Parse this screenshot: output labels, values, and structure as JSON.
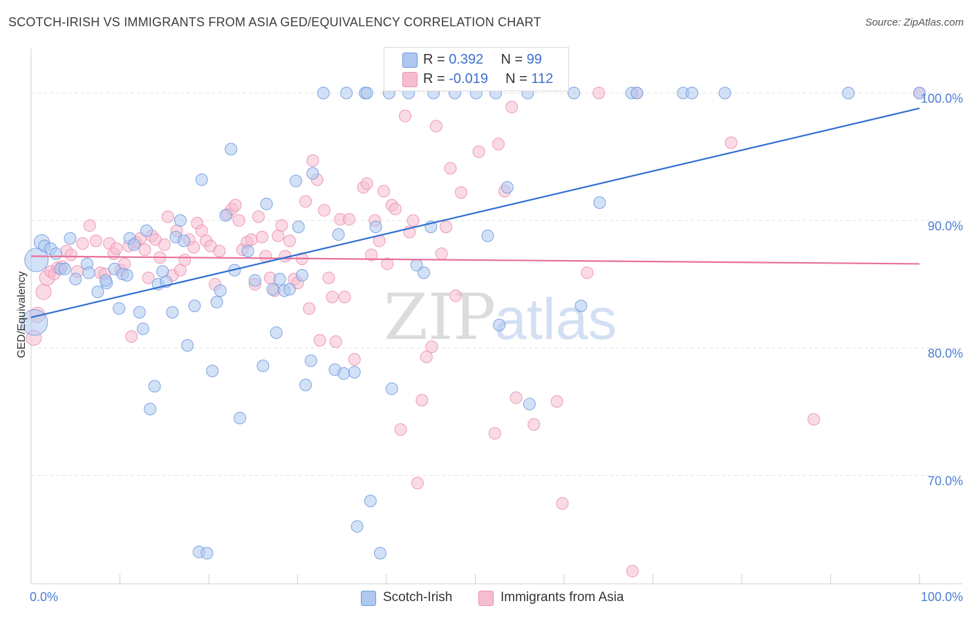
{
  "title": "SCOTCH-IRISH VS IMMIGRANTS FROM ASIA GED/EQUIVALENCY CORRELATION CHART",
  "source": "Source: ZipAtlas.com",
  "watermark": {
    "zip": "ZIP",
    "atlas": "atlas"
  },
  "legend": {
    "rows": [
      {
        "r_label": "R = ",
        "r_value": "0.392",
        "n_label": "N = ",
        "n_value": "99"
      },
      {
        "r_label": "R = ",
        "r_value": "-0.019",
        "n_label": "N = ",
        "n_value": "112"
      }
    ]
  },
  "colors": {
    "blue_fill": "#aec8f0",
    "blue_stroke": "#6f9be0",
    "blue_line": "#2f6fd0",
    "pink_fill": "#f6bdd0",
    "pink_stroke": "#ec8fb0",
    "pink_line": "#e8709a",
    "tick_text": "#4a7fd4",
    "grid": "#e2e2e2"
  },
  "chart_data": {
    "type": "scatter",
    "title": "SCOTCH-IRISH VS IMMIGRANTS FROM ASIA GED/EQUIVALENCY CORRELATION CHART",
    "xlabel": "",
    "ylabel": "GED/Equivalency",
    "xlim": [
      0,
      100
    ],
    "ylim": [
      61.5,
      103.5
    ],
    "x_tick_labels": [
      "0.0%",
      "100.0%"
    ],
    "y_ticks": [
      70,
      80,
      90,
      100
    ],
    "y_tick_labels": [
      "70.0%",
      "80.0%",
      "90.0%",
      "100.0%"
    ],
    "grid": true,
    "legend_position": "bottom",
    "series": [
      {
        "name": "Scotch-Irish",
        "r": 0.392,
        "n": 99,
        "trend": [
          [
            0,
            82.4
          ],
          [
            100,
            98.8
          ]
        ],
        "points": [
          [
            0.4,
            82.0,
            2.2
          ],
          [
            0.6,
            86.9,
            2.0
          ],
          [
            1.2,
            88.3,
            1.3
          ],
          [
            1.5,
            88.0,
            1.0
          ],
          [
            2.2,
            87.8,
            1.0
          ],
          [
            2.8,
            87.4,
            1.0
          ],
          [
            3.3,
            86.2,
            1.0
          ],
          [
            3.8,
            86.2,
            1.0
          ],
          [
            4.4,
            88.6,
            1.0
          ],
          [
            5.0,
            85.4,
            1.0
          ],
          [
            6.3,
            86.6,
            1.0
          ],
          [
            6.5,
            85.9,
            1.0
          ],
          [
            7.5,
            84.4,
            1.0
          ],
          [
            8.5,
            85.1,
            1.0
          ],
          [
            8.4,
            85.3,
            1.0
          ],
          [
            9.4,
            86.2,
            1.0
          ],
          [
            9.9,
            83.1,
            1.0
          ],
          [
            10.3,
            85.8,
            1.0
          ],
          [
            10.8,
            85.7,
            1.0
          ],
          [
            11.1,
            88.6,
            1.0
          ],
          [
            11.6,
            88.1,
            1.0
          ],
          [
            12.2,
            82.8,
            1.0
          ],
          [
            12.6,
            81.5,
            1.0
          ],
          [
            13.0,
            89.2,
            1.0
          ],
          [
            13.4,
            75.2,
            1.0
          ],
          [
            13.9,
            77.0,
            1.0
          ],
          [
            14.3,
            85.0,
            1.0
          ],
          [
            14.8,
            86.0,
            1.0
          ],
          [
            15.2,
            85.2,
            1.0
          ],
          [
            15.9,
            82.8,
            1.0
          ],
          [
            16.3,
            88.7,
            1.0
          ],
          [
            16.8,
            90.0,
            1.0
          ],
          [
            17.2,
            88.4,
            1.0
          ],
          [
            17.6,
            80.2,
            1.0
          ],
          [
            18.4,
            83.3,
            1.0
          ],
          [
            18.9,
            64.0,
            1.0
          ],
          [
            19.2,
            93.2,
            1.0
          ],
          [
            19.8,
            63.9,
            1.0
          ],
          [
            20.4,
            78.2,
            1.0
          ],
          [
            20.9,
            83.6,
            1.0
          ],
          [
            21.3,
            84.5,
            1.0
          ],
          [
            21.9,
            90.4,
            1.0
          ],
          [
            22.5,
            95.6,
            1.0
          ],
          [
            22.9,
            86.1,
            1.0
          ],
          [
            23.5,
            74.5,
            1.0
          ],
          [
            24.4,
            87.6,
            1.0
          ],
          [
            25.2,
            85.3,
            1.0
          ],
          [
            26.1,
            78.6,
            1.0
          ],
          [
            26.5,
            91.3,
            1.0
          ],
          [
            27.2,
            84.6,
            1.0
          ],
          [
            27.6,
            81.2,
            1.0
          ],
          [
            28.0,
            85.4,
            1.0
          ],
          [
            28.5,
            84.5,
            1.0
          ],
          [
            29.1,
            84.6,
            1.0
          ],
          [
            29.8,
            93.1,
            1.0
          ],
          [
            30.1,
            89.5,
            1.0
          ],
          [
            30.5,
            85.7,
            1.0
          ],
          [
            30.9,
            77.1,
            1.0
          ],
          [
            31.5,
            79.0,
            1.0
          ],
          [
            31.7,
            93.7,
            1.0
          ],
          [
            32.9,
            100.0,
            1.0
          ],
          [
            34.2,
            78.3,
            1.0
          ],
          [
            34.6,
            88.9,
            1.0
          ],
          [
            35.2,
            78.0,
            1.0
          ],
          [
            35.5,
            100.0,
            1.0
          ],
          [
            36.4,
            78.1,
            1.0
          ],
          [
            36.7,
            66.0,
            1.0
          ],
          [
            37.6,
            100.0,
            1.0
          ],
          [
            37.8,
            100.0,
            1.0
          ],
          [
            38.2,
            68.0,
            1.0
          ],
          [
            38.8,
            89.5,
            1.0
          ],
          [
            39.3,
            63.9,
            1.0
          ],
          [
            40.3,
            100.0,
            1.0
          ],
          [
            40.6,
            76.8,
            1.0
          ],
          [
            42.5,
            100.0,
            1.0
          ],
          [
            43.4,
            86.5,
            1.0
          ],
          [
            44.2,
            85.9,
            1.0
          ],
          [
            45.0,
            89.5,
            1.0
          ],
          [
            45.3,
            100.0,
            1.0
          ],
          [
            47.7,
            100.0,
            1.0
          ],
          [
            50.1,
            100.0,
            1.0
          ],
          [
            51.4,
            88.8,
            1.0
          ],
          [
            52.3,
            100.0,
            1.0
          ],
          [
            52.7,
            81.8,
            1.0
          ],
          [
            53.6,
            92.6,
            1.0
          ],
          [
            55.9,
            100.0,
            1.0
          ],
          [
            56.1,
            75.6,
            1.0
          ],
          [
            61.1,
            100.0,
            1.0
          ],
          [
            61.9,
            83.3,
            1.0
          ],
          [
            64.0,
            91.4,
            1.0
          ],
          [
            67.6,
            100.0,
            1.0
          ],
          [
            68.2,
            100.0,
            1.0
          ],
          [
            73.4,
            100.0,
            1.0
          ],
          [
            74.4,
            100.0,
            1.0
          ],
          [
            78.1,
            100.0,
            1.0
          ],
          [
            92.0,
            100.0,
            1.0
          ],
          [
            100.0,
            100.0,
            1.0
          ]
        ]
      },
      {
        "name": "Immigrants from Asia",
        "r": -0.019,
        "n": 112,
        "trend": [
          [
            0,
            87.2
          ],
          [
            100,
            86.6
          ]
        ],
        "points": [
          [
            0.3,
            80.8,
            1.3
          ],
          [
            0.7,
            82.6,
            1.3
          ],
          [
            1.4,
            84.4,
            1.3
          ],
          [
            1.8,
            85.5,
            1.3
          ],
          [
            2.2,
            86.0,
            1.0
          ],
          [
            2.6,
            85.8,
            1.0
          ],
          [
            3.0,
            86.3,
            1.0
          ],
          [
            3.5,
            86.4,
            1.0
          ],
          [
            4.0,
            87.6,
            1.0
          ],
          [
            4.5,
            87.3,
            1.0
          ],
          [
            5.2,
            86.0,
            1.0
          ],
          [
            5.8,
            88.2,
            1.0
          ],
          [
            6.6,
            89.6,
            1.0
          ],
          [
            7.3,
            88.4,
            1.0
          ],
          [
            7.8,
            85.9,
            1.0
          ],
          [
            8.3,
            85.8,
            1.0
          ],
          [
            8.8,
            88.2,
            1.0
          ],
          [
            9.3,
            87.4,
            1.0
          ],
          [
            9.6,
            87.8,
            1.0
          ],
          [
            10.1,
            86.1,
            1.0
          ],
          [
            10.5,
            86.6,
            1.0
          ],
          [
            11.0,
            88.0,
            1.0
          ],
          [
            11.3,
            80.9,
            1.0
          ],
          [
            11.8,
            88.3,
            1.0
          ],
          [
            12.3,
            88.6,
            1.0
          ],
          [
            12.8,
            87.7,
            1.0
          ],
          [
            13.2,
            85.5,
            1.0
          ],
          [
            13.6,
            88.8,
            1.0
          ],
          [
            14.0,
            88.5,
            1.0
          ],
          [
            14.5,
            87.1,
            1.0
          ],
          [
            15.0,
            88.1,
            1.0
          ],
          [
            15.4,
            90.3,
            1.0
          ],
          [
            15.9,
            85.7,
            1.0
          ],
          [
            16.4,
            89.2,
            1.0
          ],
          [
            16.8,
            86.1,
            1.0
          ],
          [
            17.3,
            86.9,
            1.0
          ],
          [
            17.8,
            88.5,
            1.0
          ],
          [
            18.3,
            87.9,
            1.0
          ],
          [
            18.7,
            89.8,
            1.0
          ],
          [
            19.2,
            89.2,
            1.0
          ],
          [
            19.7,
            88.4,
            1.0
          ],
          [
            20.2,
            88.0,
            1.0
          ],
          [
            20.7,
            85.0,
            1.0
          ],
          [
            21.2,
            87.6,
            1.0
          ],
          [
            22.1,
            90.5,
            1.0
          ],
          [
            22.6,
            90.9,
            1.0
          ],
          [
            23.0,
            91.2,
            1.0
          ],
          [
            23.4,
            90.0,
            1.0
          ],
          [
            23.8,
            87.7,
            1.0
          ],
          [
            24.3,
            88.3,
            1.0
          ],
          [
            24.8,
            88.5,
            1.0
          ],
          [
            25.2,
            85.0,
            1.0
          ],
          [
            25.6,
            90.3,
            1.0
          ],
          [
            26.0,
            88.7,
            1.0
          ],
          [
            26.4,
            87.2,
            1.0
          ],
          [
            26.9,
            85.5,
            1.0
          ],
          [
            27.4,
            84.5,
            1.0
          ],
          [
            27.8,
            88.8,
            1.0
          ],
          [
            28.2,
            89.6,
            1.0
          ],
          [
            28.6,
            87.2,
            1.0
          ],
          [
            29.1,
            88.4,
            1.0
          ],
          [
            29.6,
            85.4,
            1.0
          ],
          [
            30.0,
            85.1,
            1.0
          ],
          [
            30.5,
            87.0,
            1.0
          ],
          [
            30.9,
            91.5,
            1.0
          ],
          [
            31.3,
            83.1,
            1.0
          ],
          [
            31.7,
            94.7,
            1.0
          ],
          [
            32.2,
            93.2,
            1.0
          ],
          [
            32.5,
            80.6,
            1.0
          ],
          [
            33.0,
            90.8,
            1.0
          ],
          [
            33.5,
            85.5,
            1.0
          ],
          [
            33.9,
            84.0,
            1.0
          ],
          [
            34.3,
            80.5,
            1.0
          ],
          [
            34.8,
            90.1,
            1.0
          ],
          [
            35.3,
            84.0,
            1.0
          ],
          [
            35.8,
            90.1,
            1.0
          ],
          [
            36.4,
            79.1,
            1.0
          ],
          [
            37.4,
            92.6,
            1.0
          ],
          [
            37.8,
            92.9,
            1.0
          ],
          [
            38.3,
            87.3,
            1.0
          ],
          [
            38.7,
            90.0,
            1.0
          ],
          [
            39.2,
            88.4,
            1.0
          ],
          [
            39.7,
            92.3,
            1.0
          ],
          [
            40.1,
            86.6,
            1.0
          ],
          [
            40.6,
            91.2,
            1.0
          ],
          [
            41.0,
            90.9,
            1.0
          ],
          [
            41.6,
            73.6,
            1.0
          ],
          [
            42.1,
            98.2,
            1.0
          ],
          [
            42.6,
            89.1,
            1.0
          ],
          [
            43.0,
            90.0,
            1.0
          ],
          [
            43.5,
            69.4,
            1.0
          ],
          [
            44.0,
            75.9,
            1.0
          ],
          [
            44.5,
            79.3,
            1.0
          ],
          [
            45.1,
            80.1,
            1.0
          ],
          [
            45.6,
            97.4,
            1.0
          ],
          [
            46.2,
            87.4,
            1.0
          ],
          [
            46.7,
            89.5,
            1.0
          ],
          [
            47.2,
            94.1,
            1.0
          ],
          [
            47.8,
            84.1,
            1.0
          ],
          [
            48.4,
            92.2,
            1.0
          ],
          [
            50.4,
            95.4,
            1.0
          ],
          [
            52.2,
            73.3,
            1.0
          ],
          [
            52.6,
            96.0,
            1.0
          ],
          [
            53.3,
            92.3,
            1.0
          ],
          [
            54.1,
            98.9,
            1.0
          ],
          [
            54.6,
            76.1,
            1.0
          ],
          [
            56.6,
            74.0,
            1.0
          ],
          [
            59.2,
            75.8,
            1.0
          ],
          [
            59.8,
            67.8,
            1.0
          ],
          [
            62.6,
            85.9,
            1.0
          ],
          [
            63.9,
            100.0,
            1.0
          ],
          [
            67.7,
            62.5,
            1.0
          ],
          [
            68.2,
            100.0,
            1.0
          ],
          [
            78.8,
            96.1,
            1.0
          ],
          [
            88.1,
            74.4,
            1.0
          ],
          [
            100.0,
            100.0,
            1.0
          ]
        ]
      }
    ]
  }
}
